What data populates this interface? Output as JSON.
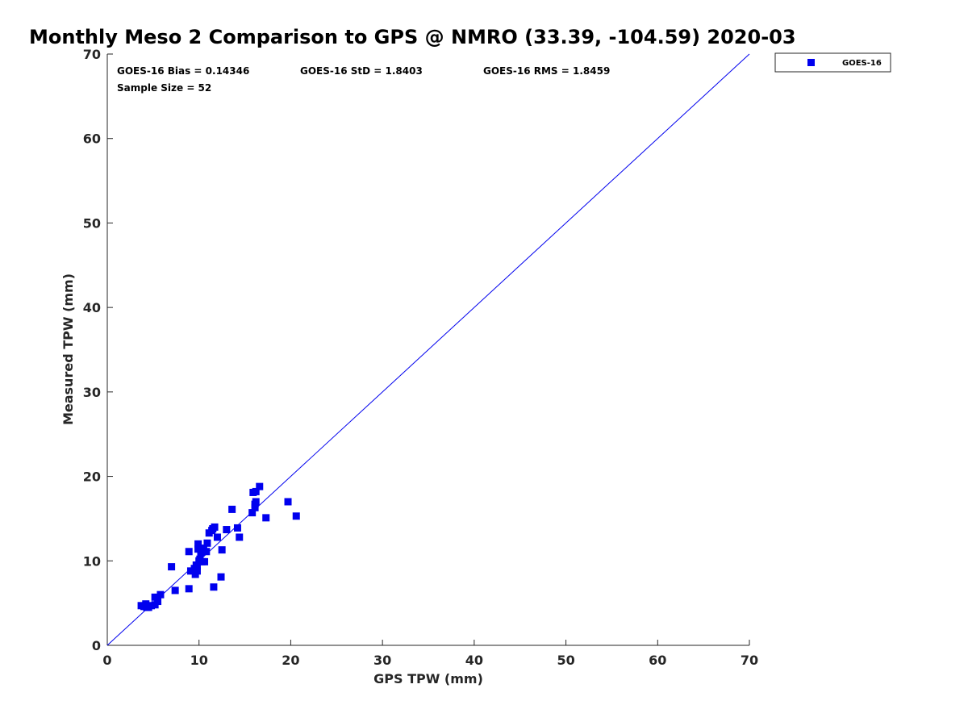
{
  "chart_data": {
    "type": "scatter",
    "title": "Monthly Meso 2 Comparison to GPS @ NMRO (33.39, -104.59) 2020-03",
    "xlabel": "GPS TPW (mm)",
    "ylabel": "Measured TPW (mm)",
    "xlim": [
      0,
      70
    ],
    "ylim": [
      0,
      70
    ],
    "xticks": [
      "0",
      "10",
      "20",
      "30",
      "40",
      "50",
      "60",
      "70"
    ],
    "yticks": [
      "0",
      "10",
      "20",
      "30",
      "40",
      "50",
      "60",
      "70"
    ],
    "grid": false,
    "legend_position": "outside-top-right",
    "reference_line": "y = x",
    "stats": {
      "bias": "GOES-16 Bias = 0.14346",
      "std": "GOES-16 StD = 1.8403",
      "rms": "GOES-16 RMS = 1.8459",
      "sample": "Sample Size = 52"
    },
    "series": [
      {
        "name": "GOES-16",
        "color": "#0000ee",
        "marker": "square",
        "points": [
          [
            3.7,
            4.7
          ],
          [
            4.0,
            4.6
          ],
          [
            4.2,
            4.9
          ],
          [
            4.5,
            4.5
          ],
          [
            4.8,
            4.7
          ],
          [
            5.2,
            4.8
          ],
          [
            5.5,
            5.2
          ],
          [
            5.2,
            5.7
          ],
          [
            5.8,
            6.0
          ],
          [
            7.0,
            9.3
          ],
          [
            7.4,
            6.5
          ],
          [
            8.9,
            6.7
          ],
          [
            8.9,
            11.1
          ],
          [
            9.1,
            8.8
          ],
          [
            9.5,
            9.1
          ],
          [
            9.6,
            8.4
          ],
          [
            9.8,
            8.8
          ],
          [
            9.7,
            9.5
          ],
          [
            9.9,
            12.0
          ],
          [
            9.9,
            11.4
          ],
          [
            10.1,
            10.2
          ],
          [
            10.3,
            9.9
          ],
          [
            10.2,
            11.0
          ],
          [
            10.5,
            11.5
          ],
          [
            10.6,
            9.9
          ],
          [
            10.8,
            11.1
          ],
          [
            10.9,
            12.1
          ],
          [
            11.1,
            13.3
          ],
          [
            11.4,
            13.6
          ],
          [
            11.7,
            14.0
          ],
          [
            11.6,
            6.9
          ],
          [
            12.0,
            12.8
          ],
          [
            12.4,
            8.1
          ],
          [
            12.5,
            11.3
          ],
          [
            13.0,
            13.7
          ],
          [
            13.6,
            16.1
          ],
          [
            14.2,
            13.9
          ],
          [
            14.4,
            12.8
          ],
          [
            15.8,
            15.7
          ],
          [
            15.9,
            18.1
          ],
          [
            16.2,
            18.2
          ],
          [
            16.1,
            16.3
          ],
          [
            16.1,
            16.7
          ],
          [
            16.2,
            17.0
          ],
          [
            16.6,
            18.8
          ],
          [
            17.3,
            15.1
          ],
          [
            19.7,
            17.0
          ],
          [
            20.6,
            15.3
          ],
          [
            10.0,
            10.0
          ],
          [
            11.5,
            13.8
          ],
          [
            4.3,
            4.5
          ],
          [
            9.8,
            9.4
          ]
        ]
      }
    ]
  }
}
